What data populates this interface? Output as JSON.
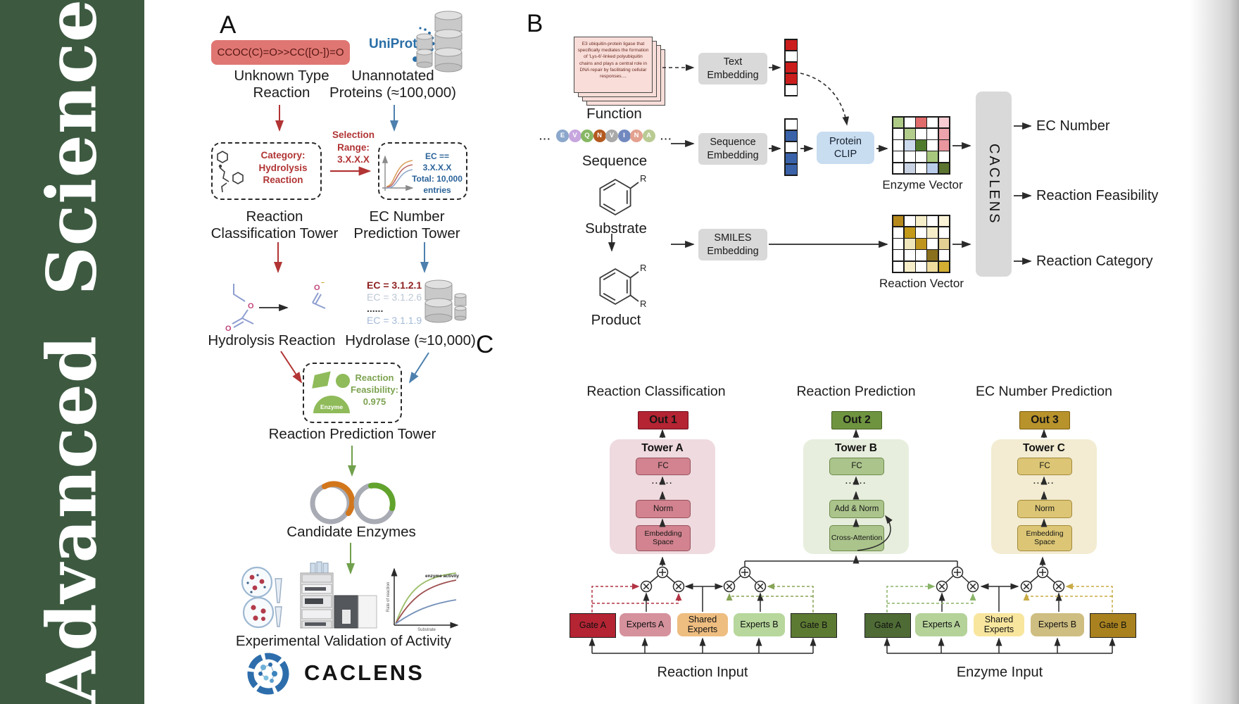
{
  "sidebar": {
    "journal": "Advanced Science"
  },
  "panelA": {
    "label": "A",
    "smiles": "CCOC(C)=O>>CC([O-])=O",
    "unknown_reaction": "Unknown Type Reaction",
    "uniprot": "UniProt",
    "unannotated": "Unannotated Proteins (≈100,000)",
    "selection": [
      "Selection",
      "Range:",
      "3.X.X.X"
    ],
    "category": [
      "Category:",
      "Hydrolysis",
      "Reaction"
    ],
    "ec_filter": [
      "EC == 3.X.X.X",
      "Total: 10,000",
      "entries"
    ],
    "tower_classification": [
      "Reaction",
      "Classification Tower"
    ],
    "tower_ec": [
      "EC Number",
      "Prediction Tower"
    ],
    "hydrolysis_reaction": "Hydrolysis Reaction",
    "ec_list": [
      {
        "text": "EC = 3.1.2.1",
        "color": "#8e1f1f",
        "bold": true
      },
      {
        "text": "EC = 3.1.2.6",
        "color": "#bcc6d4",
        "bold": false
      },
      {
        "text": "......",
        "color": "#3a3a3a",
        "bold": true
      },
      {
        "text": "EC = 3.1.1.9",
        "color": "#a3bad8",
        "bold": false
      }
    ],
    "hydrolase": "Hydrolase (≈10,000)",
    "enzyme_badge": "Enzyme",
    "feasibility": [
      "Reaction",
      "Feasibility:",
      "0.975"
    ],
    "tower_prediction": "Reaction Prediction Tower",
    "candidate_enzymes": "Candidate Enzymes",
    "activity_plot": {
      "ylabel": "Rate of reaction",
      "xlabel": "Substrate",
      "annotation": "enzyme activity"
    },
    "validation": "Experimental Validation of Activity",
    "brand": "CACLENS"
  },
  "panelB": {
    "label": "B",
    "function_card": "E3 ubiquitin-protein ligase that specifically mediates the formation of 'Lys-6'-linked polyubiquitin chains and plays a central role in DNA repair by facilitating cellular responses....",
    "function_label": "Function",
    "ellipsis": "···",
    "residues": [
      {
        "letter": "E",
        "color": "#8ba7cb"
      },
      {
        "letter": "V",
        "color": "#c7a6de"
      },
      {
        "letter": "Q",
        "color": "#87b763"
      },
      {
        "letter": "N",
        "color": "#b35a20"
      },
      {
        "letter": "V",
        "color": "#a9a9a9"
      },
      {
        "letter": "I",
        "color": "#7189bf"
      },
      {
        "letter": "N",
        "color": "#e3a18f"
      },
      {
        "letter": "A",
        "color": "#b9cb93"
      }
    ],
    "sequence_label": "Sequence",
    "substrate_label": "Substrate",
    "product_label": "Product",
    "r_group": "R",
    "text_embedding": "Text Embedding",
    "sequence_embedding": "Sequence Embedding",
    "smiles_embedding": "SMILES Embedding",
    "protein_clip": "Protein CLIP",
    "text_vector": [
      "#cc1d1d",
      "#ffffff",
      "#cc1d1d",
      "#cc1d1d",
      "#ffffff"
    ],
    "sequence_vector": [
      "#ffffff",
      "#3a62a8",
      "#ffffff",
      "#3a62a8",
      "#3a62a8"
    ],
    "enzyme_vector_label": "Enzyme Vector",
    "reaction_vector_label": "Reaction Vector",
    "enzyme_vector_grid": [
      [
        "#aecb86",
        "#ffffff",
        "#e06c6c",
        "#ffffff",
        "#f6ccd2"
      ],
      [
        "#ffffff",
        "#b2cd8c",
        "#ffffff",
        "#ffffff",
        "#eda3ab"
      ],
      [
        "#ffffff",
        "#ccdaee",
        "#4f7a2e",
        "#ffffff",
        "#e9969e"
      ],
      [
        "#ffffff",
        "#ffffff",
        "#ffffff",
        "#a6c77c",
        "#ffffff"
      ],
      [
        "#ffffff",
        "#c9d2e2",
        "#ffffff",
        "#b9cdeb",
        "#5b7431"
      ]
    ],
    "reaction_vector_grid": [
      [
        "#b5891c",
        "#ffffff",
        "#f6eec9",
        "#ffffff",
        "#faf3d8"
      ],
      [
        "#ffffff",
        "#c49a1a",
        "#ffffff",
        "#f6eec9",
        "#ffffff"
      ],
      [
        "#ffffff",
        "#f0e6bb",
        "#bf941c",
        "#ffffff",
        "#e3d093"
      ],
      [
        "#ffffff",
        "#ffffff",
        "#ffffff",
        "#8a701d",
        "#ffffff"
      ],
      [
        "#ffffff",
        "#f6eec9",
        "#ffffff",
        "#eddc9e",
        "#d4ae33"
      ]
    ],
    "caclens": "CACLENS",
    "outputs": [
      "EC Number",
      "Reaction Feasibility",
      "Reaction Category"
    ]
  },
  "panelC": {
    "label": "C",
    "headers": [
      "Reaction Classification",
      "Reaction Prediction",
      "EC Number Prediction"
    ],
    "outs": [
      "Out 1",
      "Out 2",
      "Out 3"
    ],
    "towers": [
      {
        "name": "Tower A",
        "fc": "FC",
        "dots": "......",
        "mid": "Norm",
        "bottom": "Embedding Space"
      },
      {
        "name": "Tower B",
        "fc": "FC",
        "dots": "......",
        "mid": "Add & Norm",
        "bottom": "Cross-Attention"
      },
      {
        "name": "Tower C",
        "fc": "FC",
        "dots": "......",
        "mid": "Norm",
        "bottom": "Embedding Space"
      }
    ],
    "moe_reaction": [
      "Gate A",
      "Experts A",
      "Shared Experts",
      "Experts B",
      "Gate B"
    ],
    "moe_enzyme": [
      "Gate A",
      "Experts A",
      "Shared Experts",
      "Experts B",
      "Gate B"
    ],
    "inputs": [
      "Reaction Input",
      "Enzyme Input"
    ]
  }
}
